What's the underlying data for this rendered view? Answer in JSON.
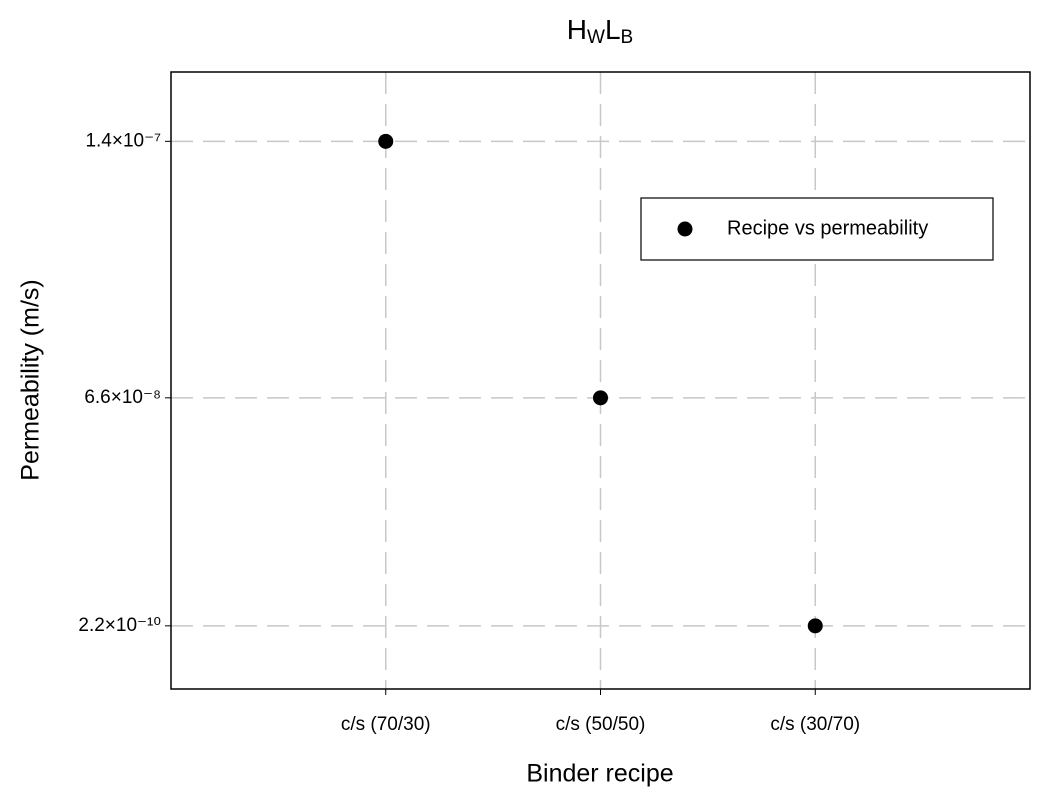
{
  "chart_data": {
    "type": "scatter",
    "title_segments": [
      {
        "text": "H"
      },
      {
        "text": "W",
        "subscript": true
      },
      {
        "text": "L"
      },
      {
        "text": "B",
        "subscript": true
      }
    ],
    "x_label": "Binder recipe",
    "y_label": "Permeability (m/s)",
    "categories": [
      "c/s (70/30)",
      "c/s (50/50)",
      "c/s (30/70)"
    ],
    "series": [
      {
        "name": "Recipe vs permeability",
        "color": "#000000",
        "values": [
          1.4e-07,
          6.6e-08,
          2.2e-10
        ]
      }
    ],
    "ylim": [
      -1.8e-08,
      1.6e-07
    ],
    "yticks": [
      {
        "value": 2.2e-10,
        "label": "2.2×10⁻¹⁰"
      },
      {
        "value": 6.6e-08,
        "label": "6.6×10⁻⁸"
      },
      {
        "value": 1.4e-07,
        "label": "1.4×10⁻⁷"
      }
    ],
    "grid": true,
    "legend": "upper right"
  }
}
